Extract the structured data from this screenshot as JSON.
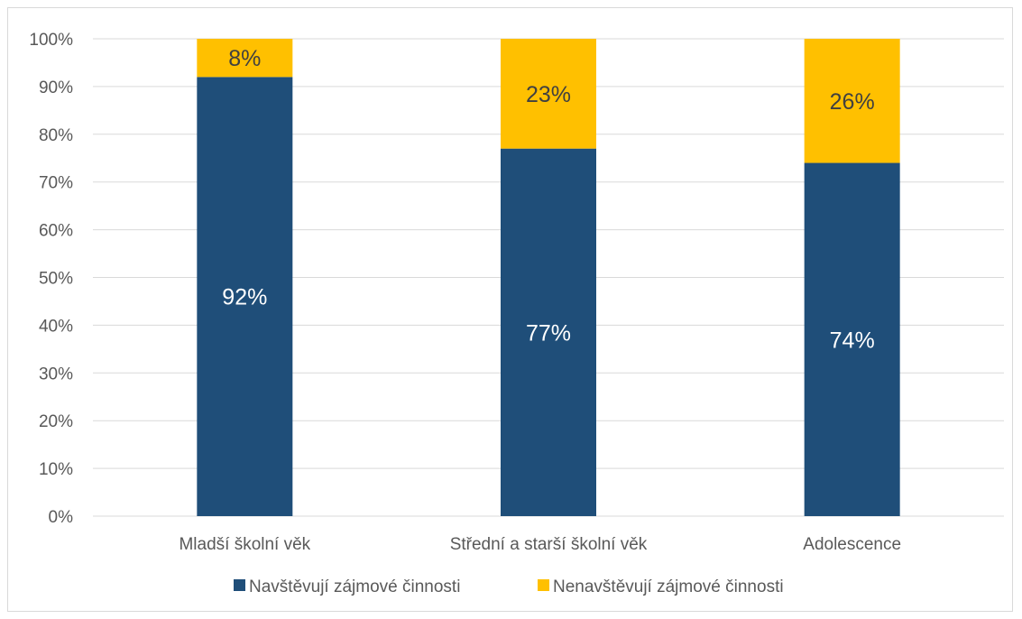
{
  "chart_data": {
    "type": "bar",
    "stacked": true,
    "categories": [
      "Mladší školní věk",
      "Střední a starší školní věk",
      "Adolescence"
    ],
    "series": [
      {
        "name": "Navštěvují zájmové činnosti",
        "values": [
          92,
          77,
          74
        ],
        "labels": [
          "92%",
          "77%",
          "74%"
        ],
        "color": "#1f4e79",
        "label_color": "#ffffff"
      },
      {
        "name": "Nenavštěvují zájmové činnosti",
        "values": [
          8,
          23,
          26
        ],
        "labels": [
          "8%",
          "23%",
          "26%"
        ],
        "color": "#ffc000",
        "label_color": "#404040"
      }
    ],
    "y_ticks": [
      "0%",
      "10%",
      "20%",
      "30%",
      "40%",
      "50%",
      "60%",
      "70%",
      "80%",
      "90%",
      "100%"
    ],
    "ylim": [
      0,
      100
    ],
    "grid": true,
    "legend_position": "bottom"
  }
}
